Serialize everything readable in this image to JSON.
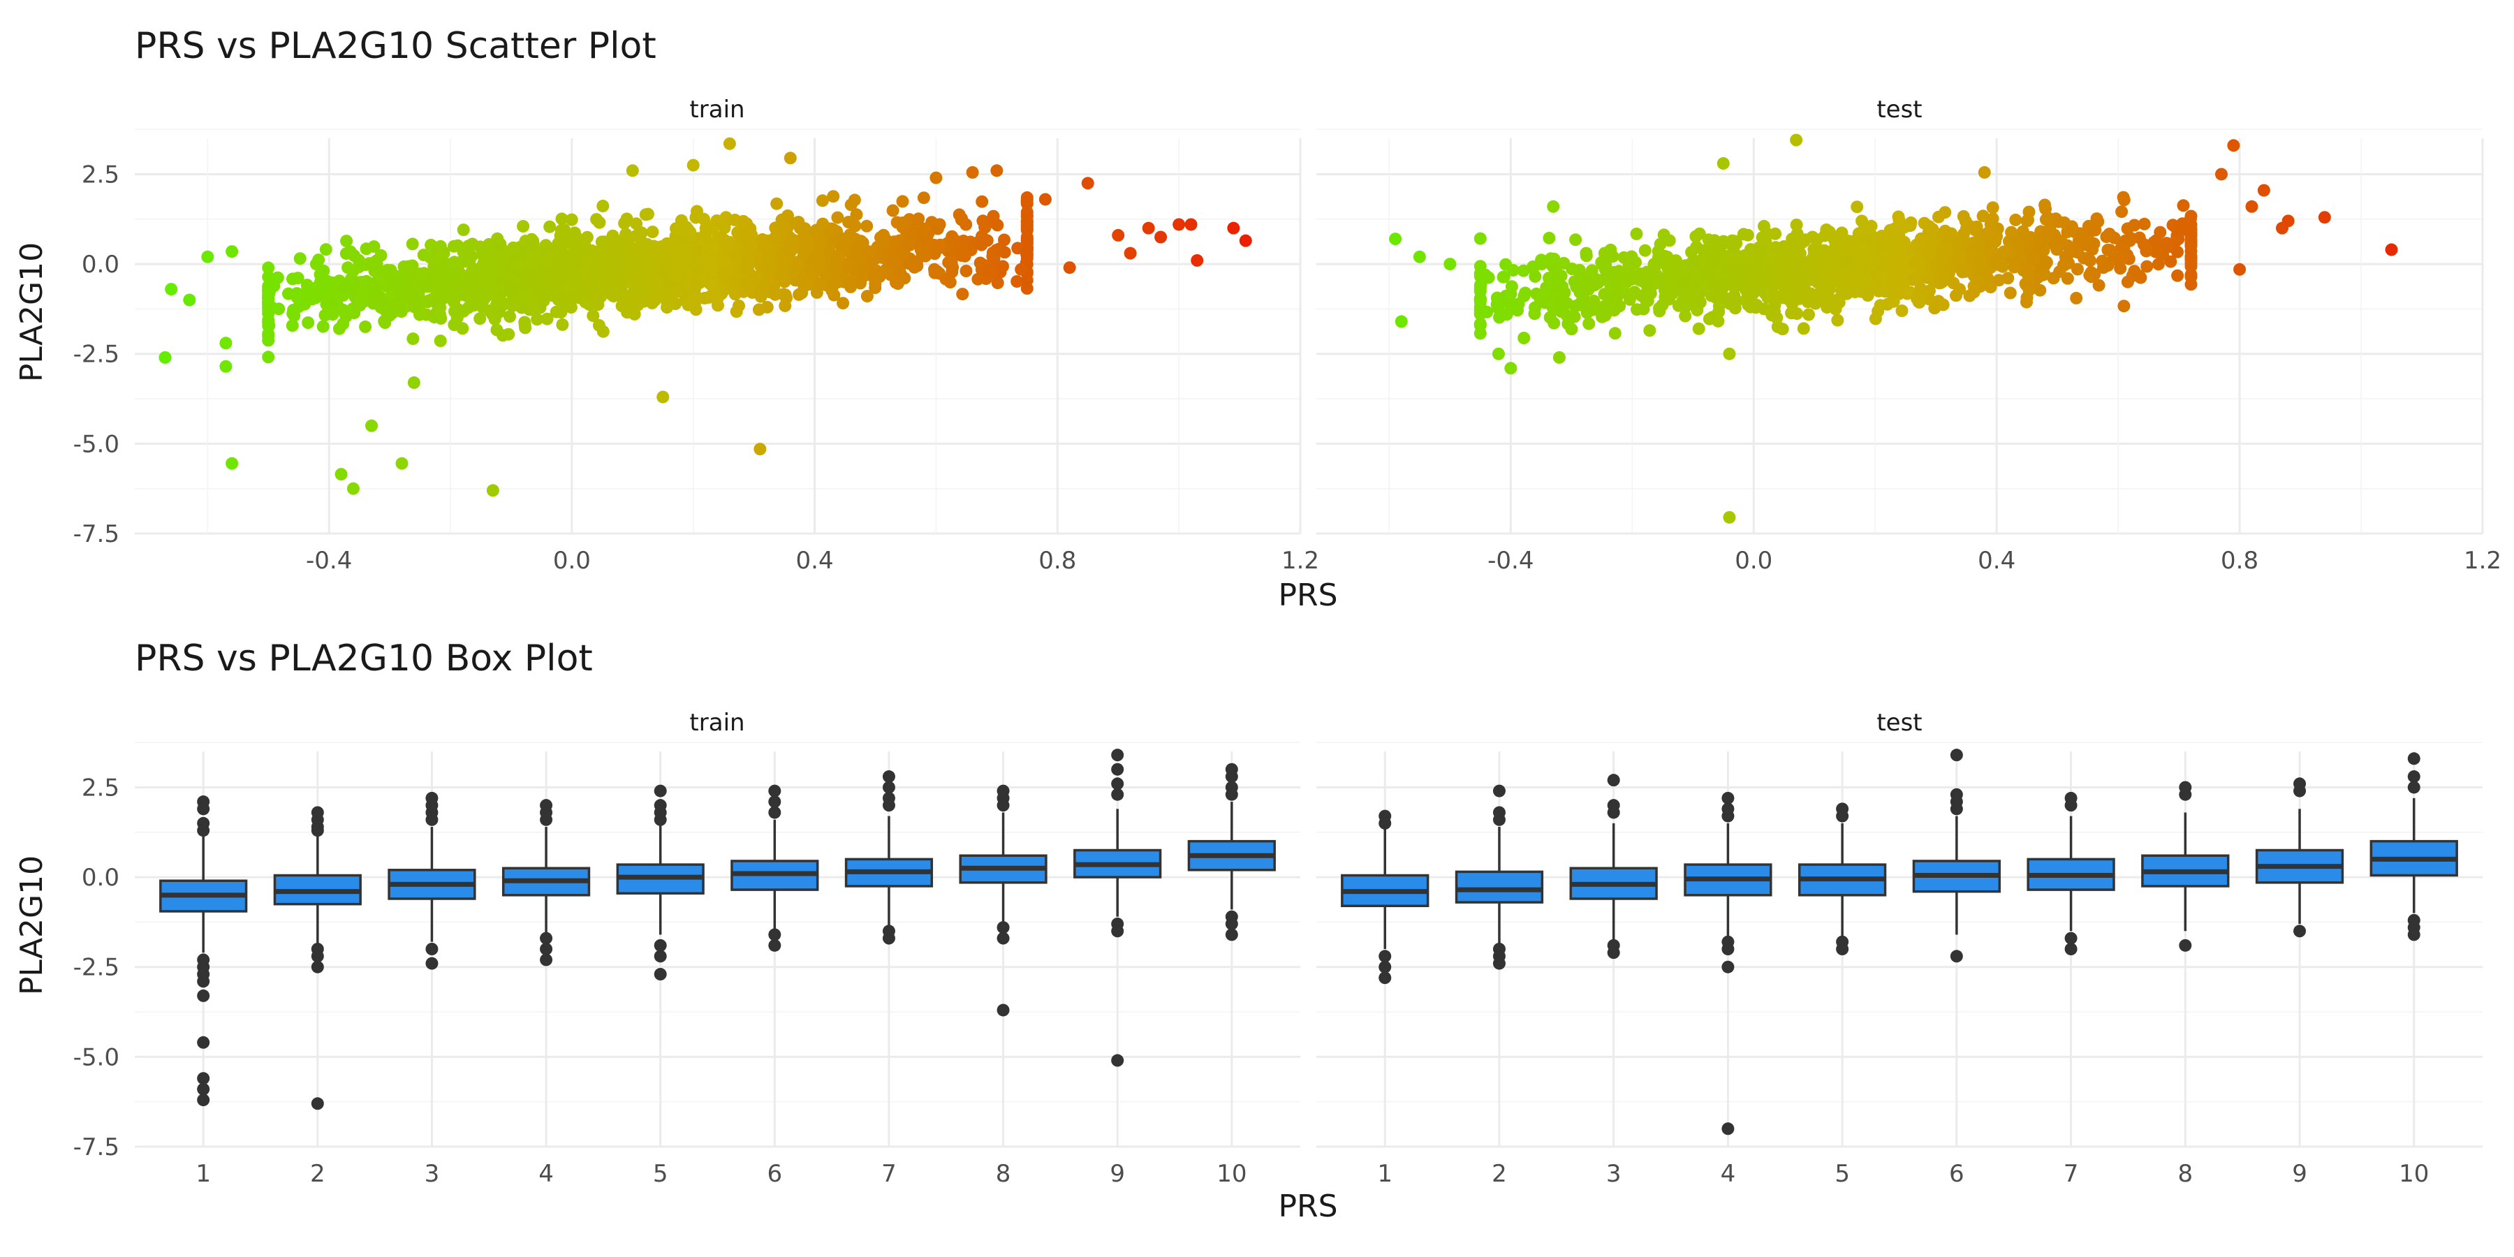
{
  "chart_data": [
    {
      "type": "scatter",
      "title": "PRS vs PLA2G10 Scatter Plot",
      "xlabel": "PRS",
      "ylabel": "PLA2G10",
      "xlim": [
        -0.72,
        1.2
      ],
      "ylim": [
        -7.5,
        3.5
      ],
      "xticks": [
        -0.4,
        0.0,
        0.4,
        0.8,
        1.2
      ],
      "xtick_labels": [
        "-0.4",
        "0.0",
        "0.4",
        "0.8",
        "1.2"
      ],
      "yticks": [
        -7.5,
        -5.0,
        -2.5,
        0.0,
        2.5
      ],
      "ytick_labels": [
        "-7.5",
        "-5.0",
        "-2.5",
        "0.0",
        "2.5"
      ],
      "grid": true,
      "color_gradient": {
        "low": "#5ef000",
        "mid": "#c8b400",
        "high": "#ee1100"
      },
      "cloud_sample_size": {
        "train": 1900,
        "test": 1300
      },
      "panels": [
        {
          "label": "train",
          "cloud": {
            "x_range": [
              -0.5,
              0.75
            ],
            "trend": [
              [
                -0.45,
                -0.9
              ],
              [
                0.0,
                -0.25
              ],
              [
                0.45,
                0.3
              ],
              [
                0.75,
                0.6
              ]
            ],
            "spread": 0.55
          },
          "points": [
            {
              "x": -0.67,
              "y": -2.6
            },
            {
              "x": -0.66,
              "y": -0.7
            },
            {
              "x": -0.63,
              "y": -1.0
            },
            {
              "x": -0.6,
              "y": 0.2
            },
            {
              "x": -0.57,
              "y": -2.2
            },
            {
              "x": -0.57,
              "y": -2.85
            },
            {
              "x": -0.56,
              "y": 0.35
            },
            {
              "x": -0.56,
              "y": -5.55
            },
            {
              "x": -0.38,
              "y": -5.85
            },
            {
              "x": -0.36,
              "y": -6.25
            },
            {
              "x": -0.33,
              "y": -4.5
            },
            {
              "x": -0.28,
              "y": -5.55
            },
            {
              "x": -0.26,
              "y": -3.3
            },
            {
              "x": -0.13,
              "y": -6.3
            },
            {
              "x": 0.15,
              "y": -3.7
            },
            {
              "x": 0.31,
              "y": -5.15
            },
            {
              "x": 0.26,
              "y": 3.35
            },
            {
              "x": 0.36,
              "y": 2.95
            },
            {
              "x": 0.2,
              "y": 2.75
            },
            {
              "x": 0.1,
              "y": 2.6
            },
            {
              "x": 0.66,
              "y": 2.55
            },
            {
              "x": 0.7,
              "y": 2.6
            },
            {
              "x": 0.6,
              "y": 2.4
            },
            {
              "x": 0.85,
              "y": 2.25
            },
            {
              "x": 0.78,
              "y": 1.8
            },
            {
              "x": 0.9,
              "y": 0.8
            },
            {
              "x": 0.95,
              "y": 1.0
            },
            {
              "x": 0.92,
              "y": 0.3
            },
            {
              "x": 1.0,
              "y": 1.1
            },
            {
              "x": 1.02,
              "y": 1.1
            },
            {
              "x": 1.03,
              "y": 0.1
            },
            {
              "x": 1.09,
              "y": 1.0
            },
            {
              "x": 1.11,
              "y": 0.65
            },
            {
              "x": 0.97,
              "y": 0.75
            },
            {
              "x": 0.82,
              "y": -0.1
            },
            {
              "x": 0.74,
              "y": -0.15
            }
          ]
        },
        {
          "label": "test",
          "cloud": {
            "x_range": [
              -0.45,
              0.72
            ],
            "trend": [
              [
                -0.45,
                -0.9
              ],
              [
                0.0,
                -0.25
              ],
              [
                0.45,
                0.3
              ],
              [
                0.72,
                0.55
              ]
            ],
            "spread": 0.55
          },
          "points": [
            {
              "x": -0.59,
              "y": 0.7
            },
            {
              "x": -0.58,
              "y": -1.6
            },
            {
              "x": -0.55,
              "y": 0.2
            },
            {
              "x": -0.5,
              "y": 0.0
            },
            {
              "x": -0.4,
              "y": -2.9
            },
            {
              "x": -0.42,
              "y": -2.5
            },
            {
              "x": -0.33,
              "y": 1.6
            },
            {
              "x": -0.32,
              "y": -2.6
            },
            {
              "x": -0.05,
              "y": 2.8
            },
            {
              "x": 0.07,
              "y": 3.45
            },
            {
              "x": -0.04,
              "y": -7.05
            },
            {
              "x": -0.04,
              "y": -2.5
            },
            {
              "x": 0.38,
              "y": 2.55
            },
            {
              "x": 0.77,
              "y": 2.5
            },
            {
              "x": 0.79,
              "y": 3.3
            },
            {
              "x": 0.84,
              "y": 2.05
            },
            {
              "x": 0.82,
              "y": 1.6
            },
            {
              "x": 0.87,
              "y": 1.0
            },
            {
              "x": 0.88,
              "y": 1.2
            },
            {
              "x": 0.94,
              "y": 1.3
            },
            {
              "x": 1.05,
              "y": 0.4
            },
            {
              "x": 0.8,
              "y": -0.15
            },
            {
              "x": 0.72,
              "y": -0.3
            }
          ]
        }
      ]
    },
    {
      "type": "box",
      "title": "PRS vs PLA2G10 Box Plot",
      "xlabel": "PRS",
      "ylabel": "PLA2G10",
      "categories": [
        "1",
        "2",
        "3",
        "4",
        "5",
        "6",
        "7",
        "8",
        "9",
        "10"
      ],
      "ylim": [
        -7.5,
        3.5
      ],
      "yticks": [
        -7.5,
        -5.0,
        -2.5,
        0.0,
        2.5
      ],
      "ytick_labels": [
        "-7.5",
        "-5.0",
        "-2.5",
        "0.0",
        "2.5"
      ],
      "grid": true,
      "box_fill": "#2b8be8",
      "box_stroke": "#333333",
      "panels": [
        {
          "label": "train",
          "boxes": [
            {
              "category": "1",
              "q1": -0.95,
              "median": -0.5,
              "q3": -0.1,
              "low": -2.1,
              "high": 1.2,
              "outliers": [
                2.1,
                1.9,
                1.5,
                1.3,
                -2.3,
                -2.5,
                -2.7,
                -2.9,
                -3.3,
                -4.6,
                -5.6,
                -5.9,
                -6.2
              ]
            },
            {
              "category": "2",
              "q1": -0.75,
              "median": -0.4,
              "q3": 0.05,
              "low": -1.9,
              "high": 1.2,
              "outliers": [
                1.8,
                1.6,
                1.4,
                1.3,
                -2.0,
                -2.2,
                -2.5,
                -6.3
              ]
            },
            {
              "category": "3",
              "q1": -0.6,
              "median": -0.2,
              "q3": 0.2,
              "low": -1.8,
              "high": 1.4,
              "outliers": [
                2.2,
                2.0,
                1.8,
                1.6,
                -2.0,
                -2.4
              ]
            },
            {
              "category": "4",
              "q1": -0.5,
              "median": -0.1,
              "q3": 0.25,
              "low": -1.6,
              "high": 1.4,
              "outliers": [
                2.0,
                1.8,
                1.6,
                -1.7,
                -2.0,
                -2.3
              ]
            },
            {
              "category": "5",
              "q1": -0.45,
              "median": 0.0,
              "q3": 0.35,
              "low": -1.6,
              "high": 1.5,
              "outliers": [
                2.4,
                2.0,
                1.8,
                1.6,
                -1.9,
                -2.2,
                -2.7
              ]
            },
            {
              "category": "6",
              "q1": -0.35,
              "median": 0.1,
              "q3": 0.45,
              "low": -1.5,
              "high": 1.6,
              "outliers": [
                2.4,
                2.1,
                1.8,
                -1.6,
                -1.9
              ]
            },
            {
              "category": "7",
              "q1": -0.25,
              "median": 0.15,
              "q3": 0.5,
              "low": -1.4,
              "high": 1.7,
              "outliers": [
                2.8,
                2.5,
                2.2,
                2.0,
                -1.5,
                -1.7
              ]
            },
            {
              "category": "8",
              "q1": -0.15,
              "median": 0.25,
              "q3": 0.6,
              "low": -1.3,
              "high": 1.8,
              "outliers": [
                2.4,
                2.2,
                2.0,
                -1.4,
                -1.7,
                -3.7
              ]
            },
            {
              "category": "9",
              "q1": 0.0,
              "median": 0.35,
              "q3": 0.75,
              "low": -1.1,
              "high": 1.9,
              "outliers": [
                3.4,
                3.0,
                2.6,
                2.3,
                -1.3,
                -1.5,
                -5.1
              ]
            },
            {
              "category": "10",
              "q1": 0.2,
              "median": 0.6,
              "q3": 1.0,
              "low": -0.9,
              "high": 2.1,
              "outliers": [
                3.0,
                2.8,
                2.5,
                2.3,
                -1.1,
                -1.3,
                -1.6
              ]
            }
          ]
        },
        {
          "label": "test",
          "boxes": [
            {
              "category": "1",
              "q1": -0.8,
              "median": -0.4,
              "q3": 0.05,
              "low": -2.0,
              "high": 1.4,
              "outliers": [
                1.7,
                1.5,
                -2.2,
                -2.5,
                -2.8
              ]
            },
            {
              "category": "2",
              "q1": -0.7,
              "median": -0.35,
              "q3": 0.15,
              "low": -1.9,
              "high": 1.4,
              "outliers": [
                2.4,
                1.8,
                1.6,
                -2.0,
                -2.2,
                -2.4
              ]
            },
            {
              "category": "3",
              "q1": -0.6,
              "median": -0.2,
              "q3": 0.25,
              "low": -1.8,
              "high": 1.5,
              "outliers": [
                2.7,
                2.0,
                1.8,
                -1.9,
                -2.1
              ]
            },
            {
              "category": "4",
              "q1": -0.5,
              "median": -0.05,
              "q3": 0.35,
              "low": -1.7,
              "high": 1.5,
              "outliers": [
                2.2,
                1.9,
                1.7,
                -1.8,
                -2.0,
                -2.5,
                -7.0
              ]
            },
            {
              "category": "5",
              "q1": -0.5,
              "median": -0.05,
              "q3": 0.35,
              "low": -1.7,
              "high": 1.5,
              "outliers": [
                1.9,
                1.7,
                -1.8,
                -2.0
              ]
            },
            {
              "category": "6",
              "q1": -0.4,
              "median": 0.05,
              "q3": 0.45,
              "low": -1.6,
              "high": 1.7,
              "outliers": [
                3.4,
                2.3,
                2.1,
                1.9,
                -2.2
              ]
            },
            {
              "category": "7",
              "q1": -0.35,
              "median": 0.05,
              "q3": 0.5,
              "low": -1.5,
              "high": 1.7,
              "outliers": [
                2.2,
                2.0,
                -1.7,
                -2.0
              ]
            },
            {
              "category": "8",
              "q1": -0.25,
              "median": 0.15,
              "q3": 0.6,
              "low": -1.5,
              "high": 1.8,
              "outliers": [
                2.5,
                2.3,
                -1.9
              ]
            },
            {
              "category": "9",
              "q1": -0.15,
              "median": 0.3,
              "q3": 0.75,
              "low": -1.3,
              "high": 1.9,
              "outliers": [
                2.6,
                2.4,
                -1.5
              ]
            },
            {
              "category": "10",
              "q1": 0.05,
              "median": 0.5,
              "q3": 1.0,
              "low": -1.0,
              "high": 2.2,
              "outliers": [
                3.3,
                2.8,
                2.5,
                -1.2,
                -1.4,
                -1.6
              ]
            }
          ]
        }
      ]
    }
  ]
}
